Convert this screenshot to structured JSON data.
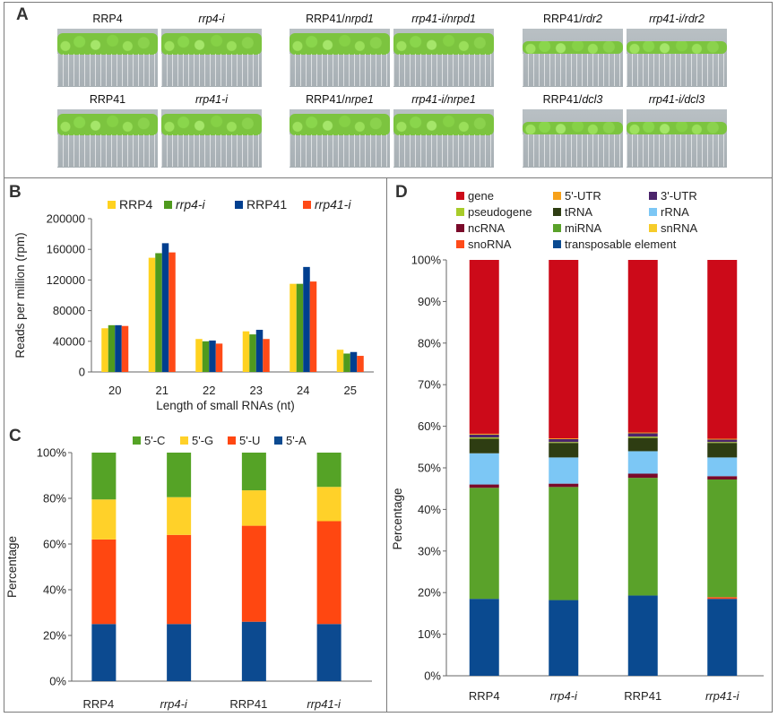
{
  "panel_a": {
    "letter": "A",
    "groups": [
      {
        "top": {
          "wt": "RRP4",
          "mut": "rrp4-i"
        },
        "bottom": {
          "wt": "RRP41",
          "mut": "rrp41-i"
        }
      },
      {
        "top": {
          "wt": "RRP41/",
          "wt_it": "nrpd1",
          "mut": "rrp41-i/nrpd1"
        },
        "bottom": {
          "wt": "RRP41/",
          "wt_it": "nrpe1",
          "mut": "rrp41-i/nrpe1"
        }
      },
      {
        "top": {
          "wt": "RRP41/",
          "wt_it": "rdr2",
          "mut": "rrp41-i/rdr2"
        },
        "bottom": {
          "wt": "RRP41/",
          "wt_it": "dcl3",
          "mut": "rrp41-i/dcl3"
        }
      }
    ]
  },
  "chart_data": [
    {
      "panel": "B",
      "type": "bar",
      "xlabel": "Length of small RNAs (nt)",
      "ylabel": "Reads per million (rpm)",
      "ylim": [
        0,
        200000
      ],
      "yticks": [
        "0",
        "40000",
        "80000",
        "120000",
        "160000",
        "200000"
      ],
      "categories": [
        "20",
        "21",
        "22",
        "23",
        "24",
        "25"
      ],
      "legend": [
        "RRP4",
        "rrp4-i",
        "RRP41",
        "rrp41-i"
      ],
      "series": [
        {
          "name": "RRP4",
          "color": "#ffd21f",
          "values": [
            57000,
            149000,
            43000,
            53000,
            115000,
            29000
          ]
        },
        {
          "name": "rrp4-i",
          "color": "#4f9a1e",
          "values": [
            61000,
            155000,
            40000,
            49000,
            115000,
            24000
          ]
        },
        {
          "name": "RRP41",
          "color": "#003f8f",
          "values": [
            61000,
            168000,
            41000,
            55000,
            137000,
            26000
          ]
        },
        {
          "name": "rrp41-i",
          "color": "#ff4a17",
          "values": [
            60000,
            156000,
            37000,
            43000,
            118000,
            21000
          ]
        }
      ]
    },
    {
      "panel": "C",
      "type": "bar",
      "stacked": true,
      "ylabel": "Percentage",
      "ylim": [
        0,
        100
      ],
      "yticks": [
        "0%",
        "20%",
        "40%",
        "60%",
        "80%",
        "100%"
      ],
      "categories": [
        "RRP4",
        "rrp4-i",
        "RRP41",
        "rrp41-i"
      ],
      "legend": [
        "5'-C",
        "5'-G",
        "5'-U",
        "5'-A"
      ],
      "series": [
        {
          "name": "5'-A",
          "color": "#0c4a90",
          "values": [
            25,
            25,
            26,
            25
          ]
        },
        {
          "name": "5'-U",
          "color": "#ff4711",
          "values": [
            37,
            39,
            42,
            45
          ]
        },
        {
          "name": "5'-G",
          "color": "#ffd129",
          "values": [
            17.5,
            16.5,
            15.5,
            15
          ]
        },
        {
          "name": "5'-C",
          "color": "#55a326",
          "values": [
            20.5,
            19.5,
            16.5,
            15
          ]
        }
      ]
    },
    {
      "panel": "D",
      "type": "bar",
      "stacked": true,
      "ylabel": "Percentage",
      "ylim": [
        0,
        100
      ],
      "yticks": [
        "0%",
        "10%",
        "20%",
        "30%",
        "40%",
        "50%",
        "60%",
        "70%",
        "80%",
        "90%",
        "100%"
      ],
      "categories": [
        "RRP4",
        "rrp4-i",
        "RRP41",
        "rrp41-i"
      ],
      "legend": [
        "gene",
        "5'-UTR",
        "3'-UTR",
        "pseudogene",
        "tRNA",
        "rRNA",
        "ncRNA",
        "miRNA",
        "snRNA",
        "snoRNA",
        "transposable element"
      ],
      "legend_colors": [
        "#cc0a19",
        "#f7a11a",
        "#4b246b",
        "#a8cc2a",
        "#2e3d12",
        "#7cc7f5",
        "#7a0a2a",
        "#5aa22a",
        "#f6cc2a",
        "#ff4b1a",
        "#0a4a90"
      ],
      "series": [
        {
          "name": "transposable element",
          "color": "#0a4a90",
          "values": [
            18.5,
            18.2,
            19.3,
            18.5
          ]
        },
        {
          "name": "snoRNA",
          "color": "#ff4b1a",
          "values": [
            0.0,
            0.0,
            0.0,
            0.4
          ]
        },
        {
          "name": "snRNA",
          "color": "#f6cc2a",
          "values": [
            0.0,
            0.0,
            0.0,
            0.0
          ]
        },
        {
          "name": "miRNA",
          "color": "#5aa22a",
          "values": [
            26.7,
            27.2,
            28.3,
            28.3
          ]
        },
        {
          "name": "ncRNA",
          "color": "#7a0a2a",
          "values": [
            0.8,
            0.8,
            1.0,
            0.8
          ]
        },
        {
          "name": "rRNA",
          "color": "#7cc7f5",
          "values": [
            7.5,
            6.3,
            5.4,
            4.5
          ]
        },
        {
          "name": "tRNA",
          "color": "#2e3d12",
          "values": [
            3.5,
            3.5,
            3.2,
            3.5
          ]
        },
        {
          "name": "pseudogene",
          "color": "#a8cc2a",
          "values": [
            0.3,
            0.2,
            0.3,
            0.2
          ]
        },
        {
          "name": "3'-UTR",
          "color": "#4b246b",
          "values": [
            0.7,
            0.7,
            0.8,
            0.6
          ]
        },
        {
          "name": "5'-UTR",
          "color": "#f7a11a",
          "values": [
            0.2,
            0.2,
            0.2,
            0.2
          ]
        },
        {
          "name": "gene",
          "color": "#cc0a19",
          "values": [
            41.8,
            42.9,
            41.5,
            43.0
          ]
        }
      ]
    }
  ]
}
